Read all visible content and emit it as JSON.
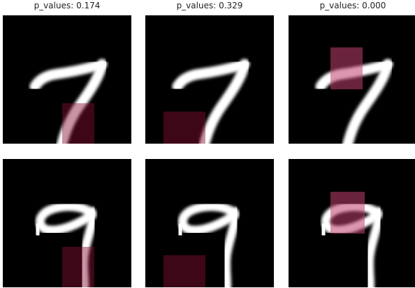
{
  "titles": [
    "p_values: 0.174",
    "p_values: 0.329",
    "p_values: 0.000"
  ]
}
